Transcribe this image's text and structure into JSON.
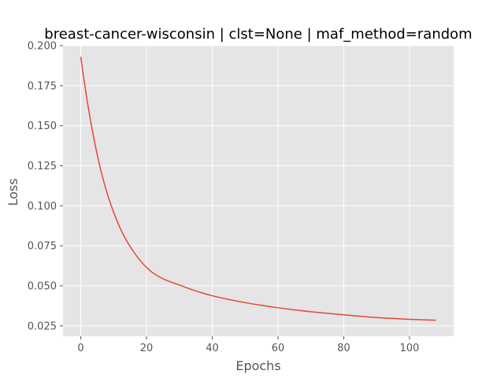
{
  "chart_data": {
    "type": "line",
    "title": "breast-cancer-wisconsin | clst=None | maf_method=random",
    "xlabel": "Epochs",
    "ylabel": "Loss",
    "xlim": [
      -5.4,
      113.4
    ],
    "ylim": [
      0.0185,
      0.2
    ],
    "xticks": [
      0,
      20,
      40,
      60,
      80,
      100
    ],
    "xtick_labels": [
      "0",
      "20",
      "40",
      "60",
      "80",
      "100"
    ],
    "yticks": [
      0.025,
      0.05,
      0.075,
      0.1,
      0.125,
      0.15,
      0.175,
      0.2
    ],
    "ytick_labels": [
      "0.025",
      "0.050",
      "0.075",
      "0.100",
      "0.125",
      "0.150",
      "0.175",
      "0.200"
    ],
    "grid": true,
    "style": "ggplot",
    "colors": {
      "background": "#E5E5E5",
      "grid": "#FFFFFF",
      "line": "#E24A33",
      "tick_text": "#555555",
      "title": "#000000"
    },
    "series": [
      {
        "x": [
          0,
          2,
          4,
          6,
          8,
          10,
          12,
          14,
          16,
          18,
          20,
          22,
          24,
          26,
          28,
          30,
          35,
          40,
          45,
          50,
          55,
          60,
          65,
          70,
          75,
          80,
          85,
          90,
          95,
          100,
          105,
          108
        ],
        "values": [
          0.193,
          0.165,
          0.142,
          0.123,
          0.108,
          0.096,
          0.086,
          0.078,
          0.0715,
          0.066,
          0.0615,
          0.058,
          0.0555,
          0.0535,
          0.052,
          0.0505,
          0.0468,
          0.0438,
          0.0415,
          0.0395,
          0.0378,
          0.0363,
          0.035,
          0.0338,
          0.0328,
          0.0319,
          0.031,
          0.0302,
          0.0296,
          0.0291,
          0.0287,
          0.0285
        ]
      }
    ]
  }
}
